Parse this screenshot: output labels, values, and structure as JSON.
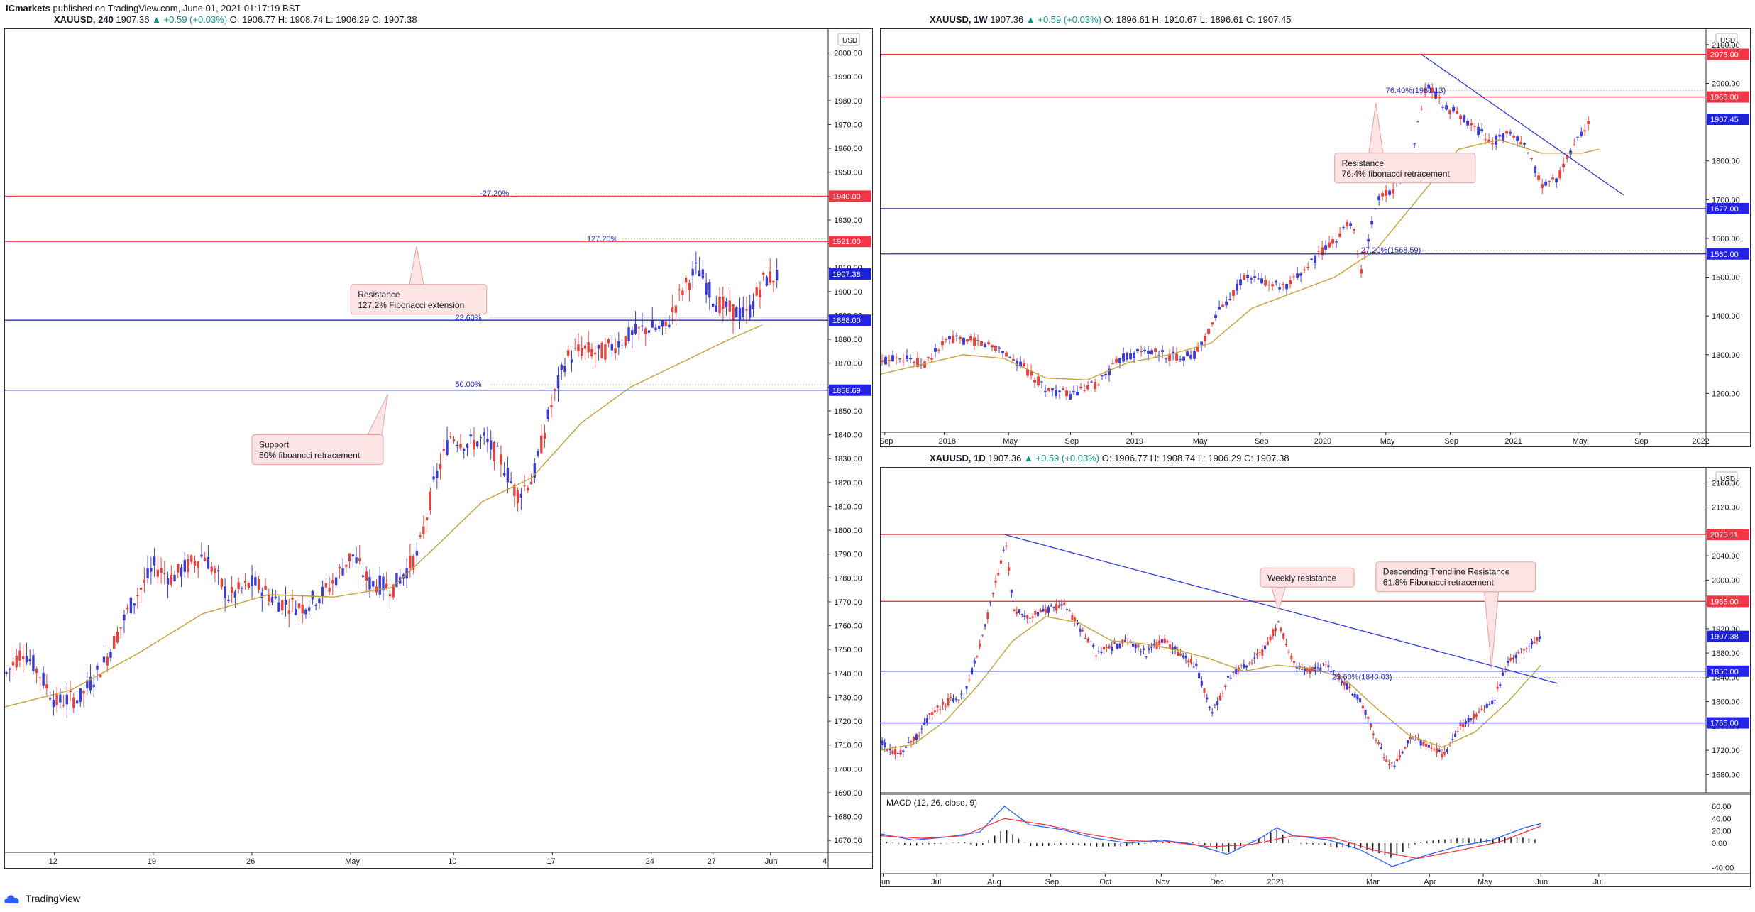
{
  "header": {
    "publisher": "ICmarkets",
    "published_text": "published on TradingView.com, June 01, 2021 01:17:19 BST"
  },
  "footer": {
    "brand": "TradingView",
    "logo_icon": "tradingview-cloud-icon"
  },
  "colors": {
    "resistance": "#f23645",
    "support": "#2424e8",
    "up_candle": "#3b3bd6",
    "down_candle": "#e8413c",
    "ma": "#c8a03a",
    "trend": "#2f3dd6",
    "callout_bg": "#fce4e4",
    "callout_border": "#e8a0a0"
  },
  "chart_data": [
    {
      "id": "h4",
      "type": "candlestick",
      "title": {
        "symbol": "XAUUSD, 240",
        "price": "1907.36",
        "change": "▲ +0.59 (+0.03%)",
        "ohlc": "O: 1906.77 H: 1908.74 L: 1906.29 C: 1907.38"
      },
      "currency": "USD",
      "ylim": [
        1665,
        2010
      ],
      "yticks": [
        1670,
        1680,
        1690,
        1700,
        1710,
        1720,
        1730,
        1740,
        1750,
        1760,
        1770,
        1780,
        1790,
        1800,
        1810,
        1820,
        1830,
        1840,
        1850,
        1860,
        1870,
        1880,
        1890,
        1900,
        1910,
        1920,
        1930,
        1940,
        1950,
        1960,
        1970,
        1980,
        1990,
        2000
      ],
      "xticks": [
        {
          "label": "12",
          "t": 0.06
        },
        {
          "label": "19",
          "t": 0.18
        },
        {
          "label": "26",
          "t": 0.3
        },
        {
          "label": "May",
          "t": 0.42
        },
        {
          "label": "10",
          "t": 0.545
        },
        {
          "label": "17",
          "t": 0.665
        },
        {
          "label": "24",
          "t": 0.785
        },
        {
          "label": "27",
          "t": 0.86
        },
        {
          "label": "Jun",
          "t": 0.93
        },
        {
          "label": "4",
          "t": 1.0
        }
      ],
      "hlines": [
        {
          "y": 1940.0,
          "label": "1940.00",
          "kind": "resistance"
        },
        {
          "y": 1921.0,
          "label": "1921.00",
          "kind": "resistance"
        },
        {
          "y": 1888.0,
          "label": "1888.00",
          "kind": "support"
        },
        {
          "y": 1858.69,
          "label": "1858.69",
          "kind": "support"
        }
      ],
      "fib": [
        {
          "y": 1941,
          "label": "-27.20%",
          "t": 0.62
        },
        {
          "y": 1922,
          "label": "127.20%",
          "t": 0.75
        },
        {
          "y": 1889,
          "label": "23.60%",
          "t": 0.59
        },
        {
          "y": 1861,
          "label": "50.00%",
          "t": 0.59
        }
      ],
      "last": {
        "y": 1907.38,
        "label": "1907.38"
      },
      "callouts": [
        {
          "lines": [
            "Resistance",
            "127.2% Fibonacci extension"
          ],
          "t": 0.42,
          "y": 1903,
          "tip_t": 0.5,
          "tip_y": 1919
        },
        {
          "lines": [
            "Support",
            "50% fiboancci retracement"
          ],
          "t": 0.3,
          "y": 1840,
          "tip_t": 0.465,
          "tip_y": 1857
        }
      ],
      "path": [
        [
          0,
          1740
        ],
        [
          0.02,
          1750
        ],
        [
          0.04,
          1740
        ],
        [
          0.06,
          1728
        ],
        [
          0.09,
          1730
        ],
        [
          0.12,
          1745
        ],
        [
          0.15,
          1768
        ],
        [
          0.18,
          1785
        ],
        [
          0.2,
          1780
        ],
        [
          0.24,
          1790
        ],
        [
          0.27,
          1772
        ],
        [
          0.3,
          1778
        ],
        [
          0.33,
          1770
        ],
        [
          0.36,
          1768
        ],
        [
          0.39,
          1775
        ],
        [
          0.42,
          1790
        ],
        [
          0.44,
          1778
        ],
        [
          0.47,
          1776
        ],
        [
          0.5,
          1790
        ],
        [
          0.52,
          1820
        ],
        [
          0.54,
          1840
        ],
        [
          0.56,
          1836
        ],
        [
          0.58,
          1838
        ],
        [
          0.6,
          1830
        ],
        [
          0.62,
          1815
        ],
        [
          0.64,
          1822
        ],
        [
          0.66,
          1850
        ],
        [
          0.68,
          1872
        ],
        [
          0.7,
          1876
        ],
        [
          0.72,
          1874
        ],
        [
          0.74,
          1878
        ],
        [
          0.76,
          1882
        ],
        [
          0.78,
          1885
        ],
        [
          0.8,
          1884
        ],
        [
          0.82,
          1900
        ],
        [
          0.84,
          1910
        ],
        [
          0.86,
          1896
        ],
        [
          0.88,
          1892
        ],
        [
          0.9,
          1890
        ],
        [
          0.92,
          1905
        ],
        [
          0.94,
          1907
        ]
      ],
      "ma": [
        [
          0,
          1726
        ],
        [
          0.08,
          1733
        ],
        [
          0.16,
          1748
        ],
        [
          0.24,
          1765
        ],
        [
          0.32,
          1773
        ],
        [
          0.4,
          1772
        ],
        [
          0.47,
          1776
        ],
        [
          0.52,
          1792
        ],
        [
          0.58,
          1812
        ],
        [
          0.64,
          1822
        ],
        [
          0.7,
          1845
        ],
        [
          0.76,
          1860
        ],
        [
          0.82,
          1870
        ],
        [
          0.88,
          1880
        ],
        [
          0.92,
          1886
        ]
      ]
    },
    {
      "id": "w1",
      "type": "candlestick",
      "title": {
        "symbol": "XAUUSD, 1W",
        "price": "1907.36",
        "change": "▲ +0.59 (+0.03%)",
        "ohlc": "O: 1896.61 H: 1910.67 L: 1896.61 C: 1907.45"
      },
      "currency": "USD",
      "ylim": [
        1100,
        2140
      ],
      "yticks": [
        1200,
        1300,
        1400,
        1500,
        1600,
        1700,
        1800,
        1900,
        2000,
        2100
      ],
      "xticks": [
        {
          "label": "Sep",
          "t": 0.005
        },
        {
          "label": "2018",
          "t": 0.077
        },
        {
          "label": "May",
          "t": 0.155
        },
        {
          "label": "Sep",
          "t": 0.23
        },
        {
          "label": "2019",
          "t": 0.304
        },
        {
          "label": "May",
          "t": 0.385
        },
        {
          "label": "Sep",
          "t": 0.46
        },
        {
          "label": "2020",
          "t": 0.532
        },
        {
          "label": "May",
          "t": 0.612
        },
        {
          "label": "Sep",
          "t": 0.69
        },
        {
          "label": "2021",
          "t": 0.763
        },
        {
          "label": "May",
          "t": 0.845
        },
        {
          "label": "Sep",
          "t": 0.92
        },
        {
          "label": "2022",
          "t": 0.99
        }
      ],
      "hlines": [
        {
          "y": 2075.0,
          "label": "2075.00",
          "kind": "resistance"
        },
        {
          "y": 1965.0,
          "label": "1965.00",
          "kind": "resistance"
        },
        {
          "y": 1677.0,
          "label": "1677.00",
          "kind": "support"
        },
        {
          "y": 1560.0,
          "label": "1560.00",
          "kind": "support"
        }
      ],
      "fib": [
        {
          "y": 1981.13,
          "label": "76.40%(1981.13)",
          "t": 0.655
        },
        {
          "y": 1568.59,
          "label": "27.20%(1568.59)",
          "t": 0.625
        }
      ],
      "last": {
        "y": 1907.45,
        "label": "1907.45"
      },
      "callouts": [
        {
          "lines": [
            "Resistance",
            "76.4% fibonacci retracement"
          ],
          "t": 0.55,
          "y": 1820,
          "tip_t": 0.6,
          "tip_y": 1950
        }
      ],
      "trendline": [
        [
          0.655,
          2075
        ],
        [
          0.9,
          1712
        ]
      ],
      "path": [
        [
          0,
          1280
        ],
        [
          0.02,
          1300
        ],
        [
          0.05,
          1275
        ],
        [
          0.08,
          1340
        ],
        [
          0.11,
          1335
        ],
        [
          0.14,
          1320
        ],
        [
          0.17,
          1270
        ],
        [
          0.2,
          1210
        ],
        [
          0.23,
          1195
        ],
        [
          0.26,
          1225
        ],
        [
          0.29,
          1290
        ],
        [
          0.32,
          1310
        ],
        [
          0.35,
          1295
        ],
        [
          0.38,
          1300
        ],
        [
          0.41,
          1420
        ],
        [
          0.44,
          1500
        ],
        [
          0.46,
          1490
        ],
        [
          0.49,
          1470
        ],
        [
          0.52,
          1540
        ],
        [
          0.55,
          1600
        ],
        [
          0.57,
          1650
        ],
        [
          0.58,
          1510
        ],
        [
          0.6,
          1700
        ],
        [
          0.62,
          1730
        ],
        [
          0.64,
          1800
        ],
        [
          0.66,
          2000
        ],
        [
          0.68,
          1940
        ],
        [
          0.7,
          1920
        ],
        [
          0.72,
          1880
        ],
        [
          0.74,
          1850
        ],
        [
          0.76,
          1870
        ],
        [
          0.78,
          1830
        ],
        [
          0.8,
          1735
        ],
        [
          0.82,
          1760
        ],
        [
          0.84,
          1850
        ],
        [
          0.86,
          1905
        ]
      ],
      "ma": [
        [
          0,
          1250
        ],
        [
          0.05,
          1275
        ],
        [
          0.1,
          1300
        ],
        [
          0.15,
          1290
        ],
        [
          0.2,
          1240
        ],
        [
          0.25,
          1235
        ],
        [
          0.3,
          1280
        ],
        [
          0.35,
          1300
        ],
        [
          0.4,
          1330
        ],
        [
          0.45,
          1420
        ],
        [
          0.5,
          1460
        ],
        [
          0.55,
          1500
        ],
        [
          0.6,
          1570
        ],
        [
          0.65,
          1700
        ],
        [
          0.7,
          1830
        ],
        [
          0.75,
          1855
        ],
        [
          0.8,
          1820
        ],
        [
          0.85,
          1820
        ],
        [
          0.87,
          1830
        ]
      ]
    },
    {
      "id": "d1",
      "type": "candlestick",
      "title": {
        "symbol": "XAUUSD, 1D",
        "price": "1907.36",
        "change": "▲ +0.59 (+0.03%)",
        "ohlc": "O: 1906.77 H: 1908.74 L: 1906.29 C: 1907.38"
      },
      "currency": "USD",
      "ylim": [
        1650,
        2185
      ],
      "yticks": [
        1680,
        1720,
        1760,
        1800,
        1840,
        1880,
        1920,
        1960,
        2000,
        2040,
        2080,
        2120,
        2160
      ],
      "xticks": [
        {
          "label": "Jun",
          "t": 0.003
        },
        {
          "label": "Jul",
          "t": 0.068
        },
        {
          "label": "Aug",
          "t": 0.136
        },
        {
          "label": "Sep",
          "t": 0.206
        },
        {
          "label": "Oct",
          "t": 0.272
        },
        {
          "label": "Nov",
          "t": 0.34
        },
        {
          "label": "Dec",
          "t": 0.406
        },
        {
          "label": "2021",
          "t": 0.475
        },
        {
          "label": "Mar",
          "t": 0.595
        },
        {
          "label": "Apr",
          "t": 0.665
        },
        {
          "label": "May",
          "t": 0.73
        },
        {
          "label": "Jun",
          "t": 0.8
        },
        {
          "label": "Jul",
          "t": 0.87
        }
      ],
      "hlines": [
        {
          "y": 2075.11,
          "label": "2075.11",
          "kind": "resistance"
        },
        {
          "y": 1965.0,
          "label": "1965.00",
          "kind": "resistance"
        },
        {
          "y": 1850.0,
          "label": "1850.00",
          "kind": "support"
        },
        {
          "y": 1765.0,
          "label": "1765.00",
          "kind": "support"
        }
      ],
      "fib": [
        {
          "y": 1840.03,
          "label": "23.60%(1840.03)",
          "t": 0.59
        }
      ],
      "last": {
        "y": 1907.38,
        "label": "1907.38"
      },
      "callouts": [
        {
          "lines": [
            "Weekly resistance"
          ],
          "t": 0.46,
          "y": 2020,
          "tip_t": 0.482,
          "tip_y": 1950
        },
        {
          "lines": [
            "Descending Trendline Resistance",
            "61.8% Fibonacci retracement"
          ],
          "t": 0.6,
          "y": 2030,
          "tip_t": 0.74,
          "tip_y": 1855
        }
      ],
      "trendline": [
        [
          0.15,
          2075
        ],
        [
          0.82,
          1830
        ]
      ],
      "path": [
        [
          0,
          1730
        ],
        [
          0.02,
          1715
        ],
        [
          0.04,
          1740
        ],
        [
          0.06,
          1780
        ],
        [
          0.08,
          1800
        ],
        [
          0.1,
          1810
        ],
        [
          0.12,
          1900
        ],
        [
          0.15,
          2060
        ],
        [
          0.16,
          1950
        ],
        [
          0.18,
          1940
        ],
        [
          0.2,
          1950
        ],
        [
          0.22,
          1960
        ],
        [
          0.24,
          1920
        ],
        [
          0.26,
          1880
        ],
        [
          0.28,
          1890
        ],
        [
          0.3,
          1900
        ],
        [
          0.32,
          1880
        ],
        [
          0.34,
          1900
        ],
        [
          0.36,
          1880
        ],
        [
          0.38,
          1860
        ],
        [
          0.4,
          1780
        ],
        [
          0.42,
          1840
        ],
        [
          0.44,
          1860
        ],
        [
          0.46,
          1880
        ],
        [
          0.48,
          1930
        ],
        [
          0.5,
          1860
        ],
        [
          0.52,
          1850
        ],
        [
          0.54,
          1860
        ],
        [
          0.56,
          1830
        ],
        [
          0.58,
          1800
        ],
        [
          0.6,
          1730
        ],
        [
          0.62,
          1690
        ],
        [
          0.64,
          1740
        ],
        [
          0.66,
          1730
        ],
        [
          0.68,
          1710
        ],
        [
          0.7,
          1760
        ],
        [
          0.72,
          1780
        ],
        [
          0.74,
          1800
        ],
        [
          0.76,
          1870
        ],
        [
          0.78,
          1890
        ],
        [
          0.8,
          1907
        ]
      ],
      "ma": [
        [
          0,
          1720
        ],
        [
          0.04,
          1730
        ],
        [
          0.08,
          1770
        ],
        [
          0.12,
          1830
        ],
        [
          0.16,
          1900
        ],
        [
          0.2,
          1940
        ],
        [
          0.24,
          1930
        ],
        [
          0.28,
          1900
        ],
        [
          0.32,
          1895
        ],
        [
          0.36,
          1885
        ],
        [
          0.4,
          1870
        ],
        [
          0.44,
          1850
        ],
        [
          0.48,
          1860
        ],
        [
          0.52,
          1855
        ],
        [
          0.56,
          1840
        ],
        [
          0.6,
          1790
        ],
        [
          0.64,
          1745
        ],
        [
          0.68,
          1725
        ],
        [
          0.72,
          1750
        ],
        [
          0.76,
          1800
        ],
        [
          0.8,
          1860
        ]
      ]
    },
    {
      "id": "macd",
      "type": "line",
      "label": "MACD (12, 26, close, 9)",
      "ylim": [
        -45,
        75
      ],
      "yticks": [
        -40,
        0,
        20,
        40,
        60
      ],
      "macd_color": "#2962ff",
      "signal_color": "#f23645",
      "macd": [
        [
          0,
          15
        ],
        [
          0.04,
          5
        ],
        [
          0.08,
          10
        ],
        [
          0.12,
          18
        ],
        [
          0.15,
          60
        ],
        [
          0.18,
          30
        ],
        [
          0.22,
          22
        ],
        [
          0.26,
          8
        ],
        [
          0.3,
          0
        ],
        [
          0.34,
          5
        ],
        [
          0.38,
          -2
        ],
        [
          0.42,
          -18
        ],
        [
          0.46,
          8
        ],
        [
          0.48,
          25
        ],
        [
          0.5,
          12
        ],
        [
          0.54,
          6
        ],
        [
          0.58,
          -10
        ],
        [
          0.62,
          -38
        ],
        [
          0.66,
          -20
        ],
        [
          0.7,
          -5
        ],
        [
          0.74,
          5
        ],
        [
          0.78,
          25
        ],
        [
          0.8,
          32
        ]
      ],
      "signal": [
        [
          0,
          12
        ],
        [
          0.05,
          8
        ],
        [
          0.1,
          12
        ],
        [
          0.15,
          40
        ],
        [
          0.2,
          30
        ],
        [
          0.25,
          15
        ],
        [
          0.3,
          4
        ],
        [
          0.35,
          2
        ],
        [
          0.4,
          -6
        ],
        [
          0.45,
          -2
        ],
        [
          0.5,
          12
        ],
        [
          0.55,
          8
        ],
        [
          0.6,
          -12
        ],
        [
          0.65,
          -25
        ],
        [
          0.7,
          -12
        ],
        [
          0.75,
          2
        ],
        [
          0.8,
          28
        ]
      ]
    }
  ]
}
